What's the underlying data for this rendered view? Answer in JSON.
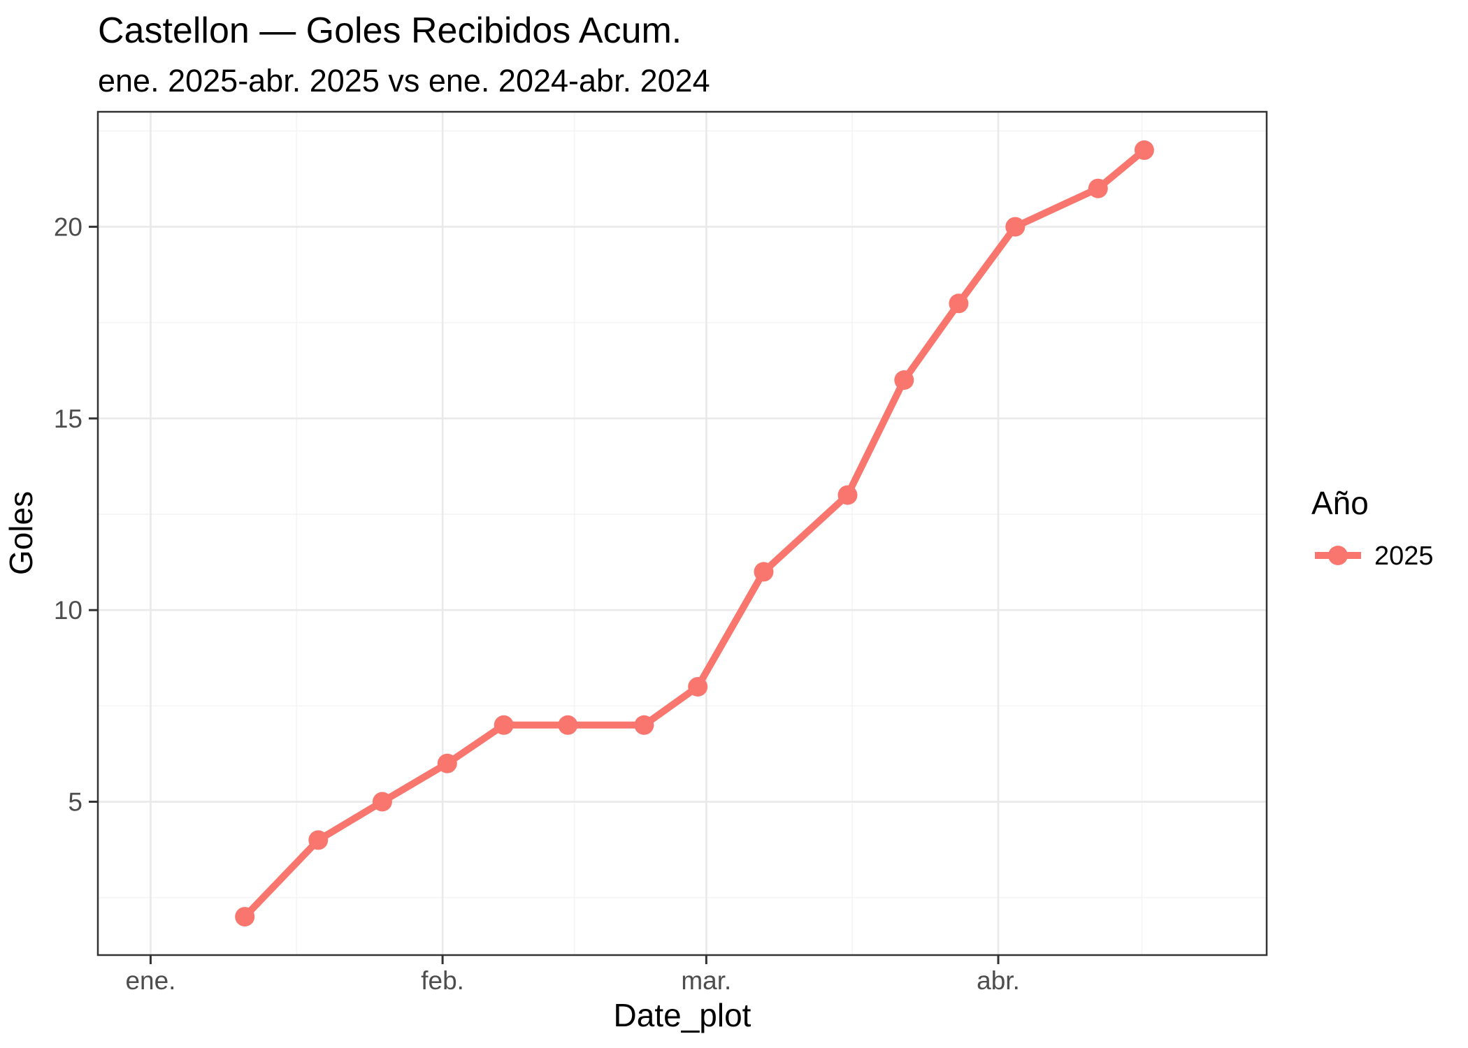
{
  "figure": {
    "title": "Castellon — Goles Recibidos Acum.",
    "subtitle": "ene. 2025-abr. 2025 vs ene. 2024-abr. 2024"
  },
  "colors": {
    "series": "#F8766D",
    "grid_major": "#E9E9E9",
    "grid_minor": "#F4F4F4",
    "panel_border": "#333333",
    "tick_mark": "#333333",
    "tick_label": "#4D4D4D",
    "text": "#000000",
    "background": "#FFFFFF"
  },
  "chart_data": {
    "type": "line",
    "title": "Castellon — Goles Recibidos Acum.",
    "subtitle": "ene. 2025-abr. 2025 vs ene. 2024-abr. 2024",
    "xlabel": "Date_plot",
    "ylabel": "Goles",
    "grid": true,
    "legend_position": "right",
    "legend": {
      "title": "Año",
      "entries": [
        {
          "label": "2025",
          "color": "#F8766D"
        }
      ]
    },
    "x_axis": {
      "unit": "days_since_jan1",
      "domain": [
        -5.6,
        118.5
      ],
      "ticks": [
        {
          "label": "ene.",
          "day": 0
        },
        {
          "label": "feb.",
          "day": 31
        },
        {
          "label": "mar.",
          "day": 59
        },
        {
          "label": "abr.",
          "day": 90
        }
      ],
      "minor_days": [
        15.5,
        45,
        74.5,
        105.25
      ]
    },
    "y_axis": {
      "domain": [
        1,
        23
      ],
      "ticks": [
        {
          "label": "5",
          "value": 5
        },
        {
          "label": "10",
          "value": 10
        },
        {
          "label": "15",
          "value": 15
        },
        {
          "label": "20",
          "value": 20
        }
      ],
      "minor_values": [
        2.5,
        7.5,
        12.5,
        17.5,
        22.5
      ]
    },
    "series": [
      {
        "name": "2025",
        "color": "#F8766D",
        "points": [
          {
            "day": 10.0,
            "value": 2
          },
          {
            "day": 17.8,
            "value": 4
          },
          {
            "day": 24.6,
            "value": 5
          },
          {
            "day": 31.5,
            "value": 6
          },
          {
            "day": 37.5,
            "value": 7
          },
          {
            "day": 44.3,
            "value": 7
          },
          {
            "day": 52.4,
            "value": 7
          },
          {
            "day": 58.1,
            "value": 8
          },
          {
            "day": 65.1,
            "value": 11
          },
          {
            "day": 74.0,
            "value": 13
          },
          {
            "day": 80.0,
            "value": 16
          },
          {
            "day": 85.8,
            "value": 18
          },
          {
            "day": 91.8,
            "value": 20
          },
          {
            "day": 100.6,
            "value": 21
          },
          {
            "day": 105.5,
            "value": 22
          }
        ]
      }
    ]
  }
}
